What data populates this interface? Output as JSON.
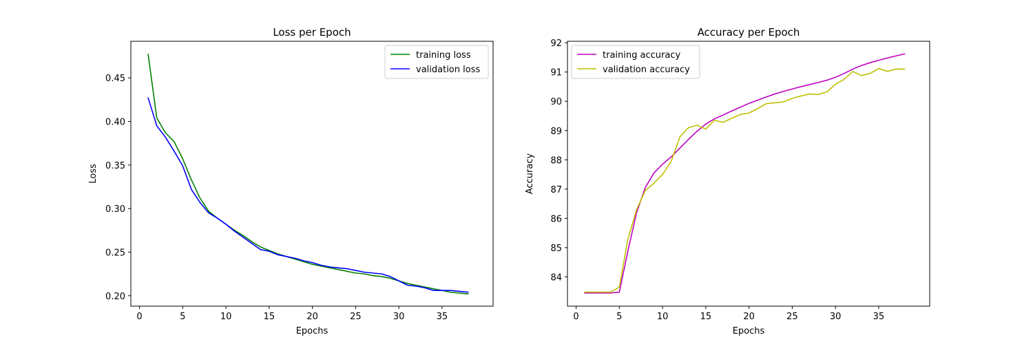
{
  "chart_data": [
    {
      "type": "line",
      "title": "Loss per Epoch",
      "xlabel": "Epochs",
      "ylabel": "Loss",
      "xlim": [
        -1.0,
        40.9
      ],
      "ylim": [
        0.188,
        0.492
      ],
      "xticks": [
        0,
        5,
        10,
        15,
        20,
        25,
        30,
        35
      ],
      "xtick_labels": [
        "0",
        "5",
        "10",
        "15",
        "20",
        "25",
        "30",
        "35"
      ],
      "yticks": [
        0.2,
        0.25,
        0.3,
        0.35,
        0.4,
        0.45
      ],
      "ytick_labels": [
        "0.20",
        "0.25",
        "0.30",
        "0.35",
        "0.40",
        "0.45"
      ],
      "grid": false,
      "legend_position": "top-right",
      "x": [
        1,
        2,
        3,
        4,
        5,
        6,
        7,
        8,
        9,
        10,
        11,
        12,
        13,
        14,
        15,
        16,
        17,
        18,
        19,
        20,
        21,
        22,
        23,
        24,
        25,
        26,
        27,
        28,
        29,
        30,
        31,
        32,
        33,
        34,
        35,
        36,
        37,
        38
      ],
      "series": [
        {
          "name": "training loss",
          "color": "#008000",
          "values": [
            0.477,
            0.404,
            0.387,
            0.377,
            0.357,
            0.333,
            0.312,
            0.297,
            0.289,
            0.282,
            0.275,
            0.269,
            0.262,
            0.256,
            0.252,
            0.248,
            0.245,
            0.242,
            0.239,
            0.236,
            0.234,
            0.232,
            0.23,
            0.228,
            0.226,
            0.225,
            0.223,
            0.222,
            0.22,
            0.217,
            0.214,
            0.212,
            0.21,
            0.208,
            0.206,
            0.204,
            0.203,
            0.202
          ]
        },
        {
          "name": "validation loss",
          "color": "#0000ff",
          "values": [
            0.427,
            0.395,
            0.382,
            0.366,
            0.349,
            0.322,
            0.307,
            0.295,
            0.289,
            0.282,
            0.274,
            0.267,
            0.26,
            0.253,
            0.251,
            0.247,
            0.245,
            0.243,
            0.24,
            0.238,
            0.235,
            0.233,
            0.232,
            0.231,
            0.229,
            0.227,
            0.226,
            0.225,
            0.222,
            0.217,
            0.212,
            0.211,
            0.209,
            0.206,
            0.206,
            0.206,
            0.205,
            0.204
          ]
        }
      ]
    },
    {
      "type": "line",
      "title": "Accuracy per Epoch",
      "xlabel": "Epochs",
      "ylabel": "Accuracy",
      "xlim": [
        -1.0,
        40.9
      ],
      "ylim": [
        83.0,
        92.05
      ],
      "xticks": [
        0,
        5,
        10,
        15,
        20,
        25,
        30,
        35
      ],
      "xtick_labels": [
        "0",
        "5",
        "10",
        "15",
        "20",
        "25",
        "30",
        "35"
      ],
      "yticks": [
        84,
        85,
        86,
        87,
        88,
        89,
        90,
        91,
        92
      ],
      "ytick_labels": [
        "84",
        "85",
        "86",
        "87",
        "88",
        "89",
        "90",
        "91",
        "92"
      ],
      "grid": false,
      "legend_position": "top-left",
      "x": [
        1,
        2,
        3,
        4,
        5,
        6,
        7,
        8,
        9,
        10,
        11,
        12,
        13,
        14,
        15,
        16,
        17,
        18,
        19,
        20,
        21,
        22,
        23,
        24,
        25,
        26,
        27,
        28,
        29,
        30,
        31,
        32,
        33,
        34,
        35,
        36,
        37,
        38
      ],
      "series": [
        {
          "name": "training accuracy",
          "color": "#bf00bf",
          "values": [
            83.45,
            83.45,
            83.45,
            83.45,
            83.48,
            84.9,
            86.2,
            87.05,
            87.55,
            87.85,
            88.1,
            88.4,
            88.7,
            88.98,
            89.22,
            89.4,
            89.53,
            89.67,
            89.8,
            89.93,
            90.04,
            90.15,
            90.25,
            90.34,
            90.42,
            90.5,
            90.57,
            90.64,
            90.72,
            90.82,
            90.95,
            91.1,
            91.22,
            91.32,
            91.4,
            91.48,
            91.55,
            91.62
          ]
        },
        {
          "name": "validation accuracy",
          "color": "#bfbf00",
          "values": [
            83.48,
            83.48,
            83.48,
            83.48,
            83.65,
            85.3,
            86.3,
            86.95,
            87.2,
            87.5,
            87.95,
            88.78,
            89.1,
            89.18,
            89.05,
            89.35,
            89.28,
            89.42,
            89.55,
            89.6,
            89.75,
            89.92,
            89.95,
            89.98,
            90.1,
            90.18,
            90.25,
            90.23,
            90.32,
            90.58,
            90.75,
            91.02,
            90.88,
            90.95,
            91.12,
            91.02,
            91.1,
            91.1
          ]
        }
      ]
    }
  ]
}
